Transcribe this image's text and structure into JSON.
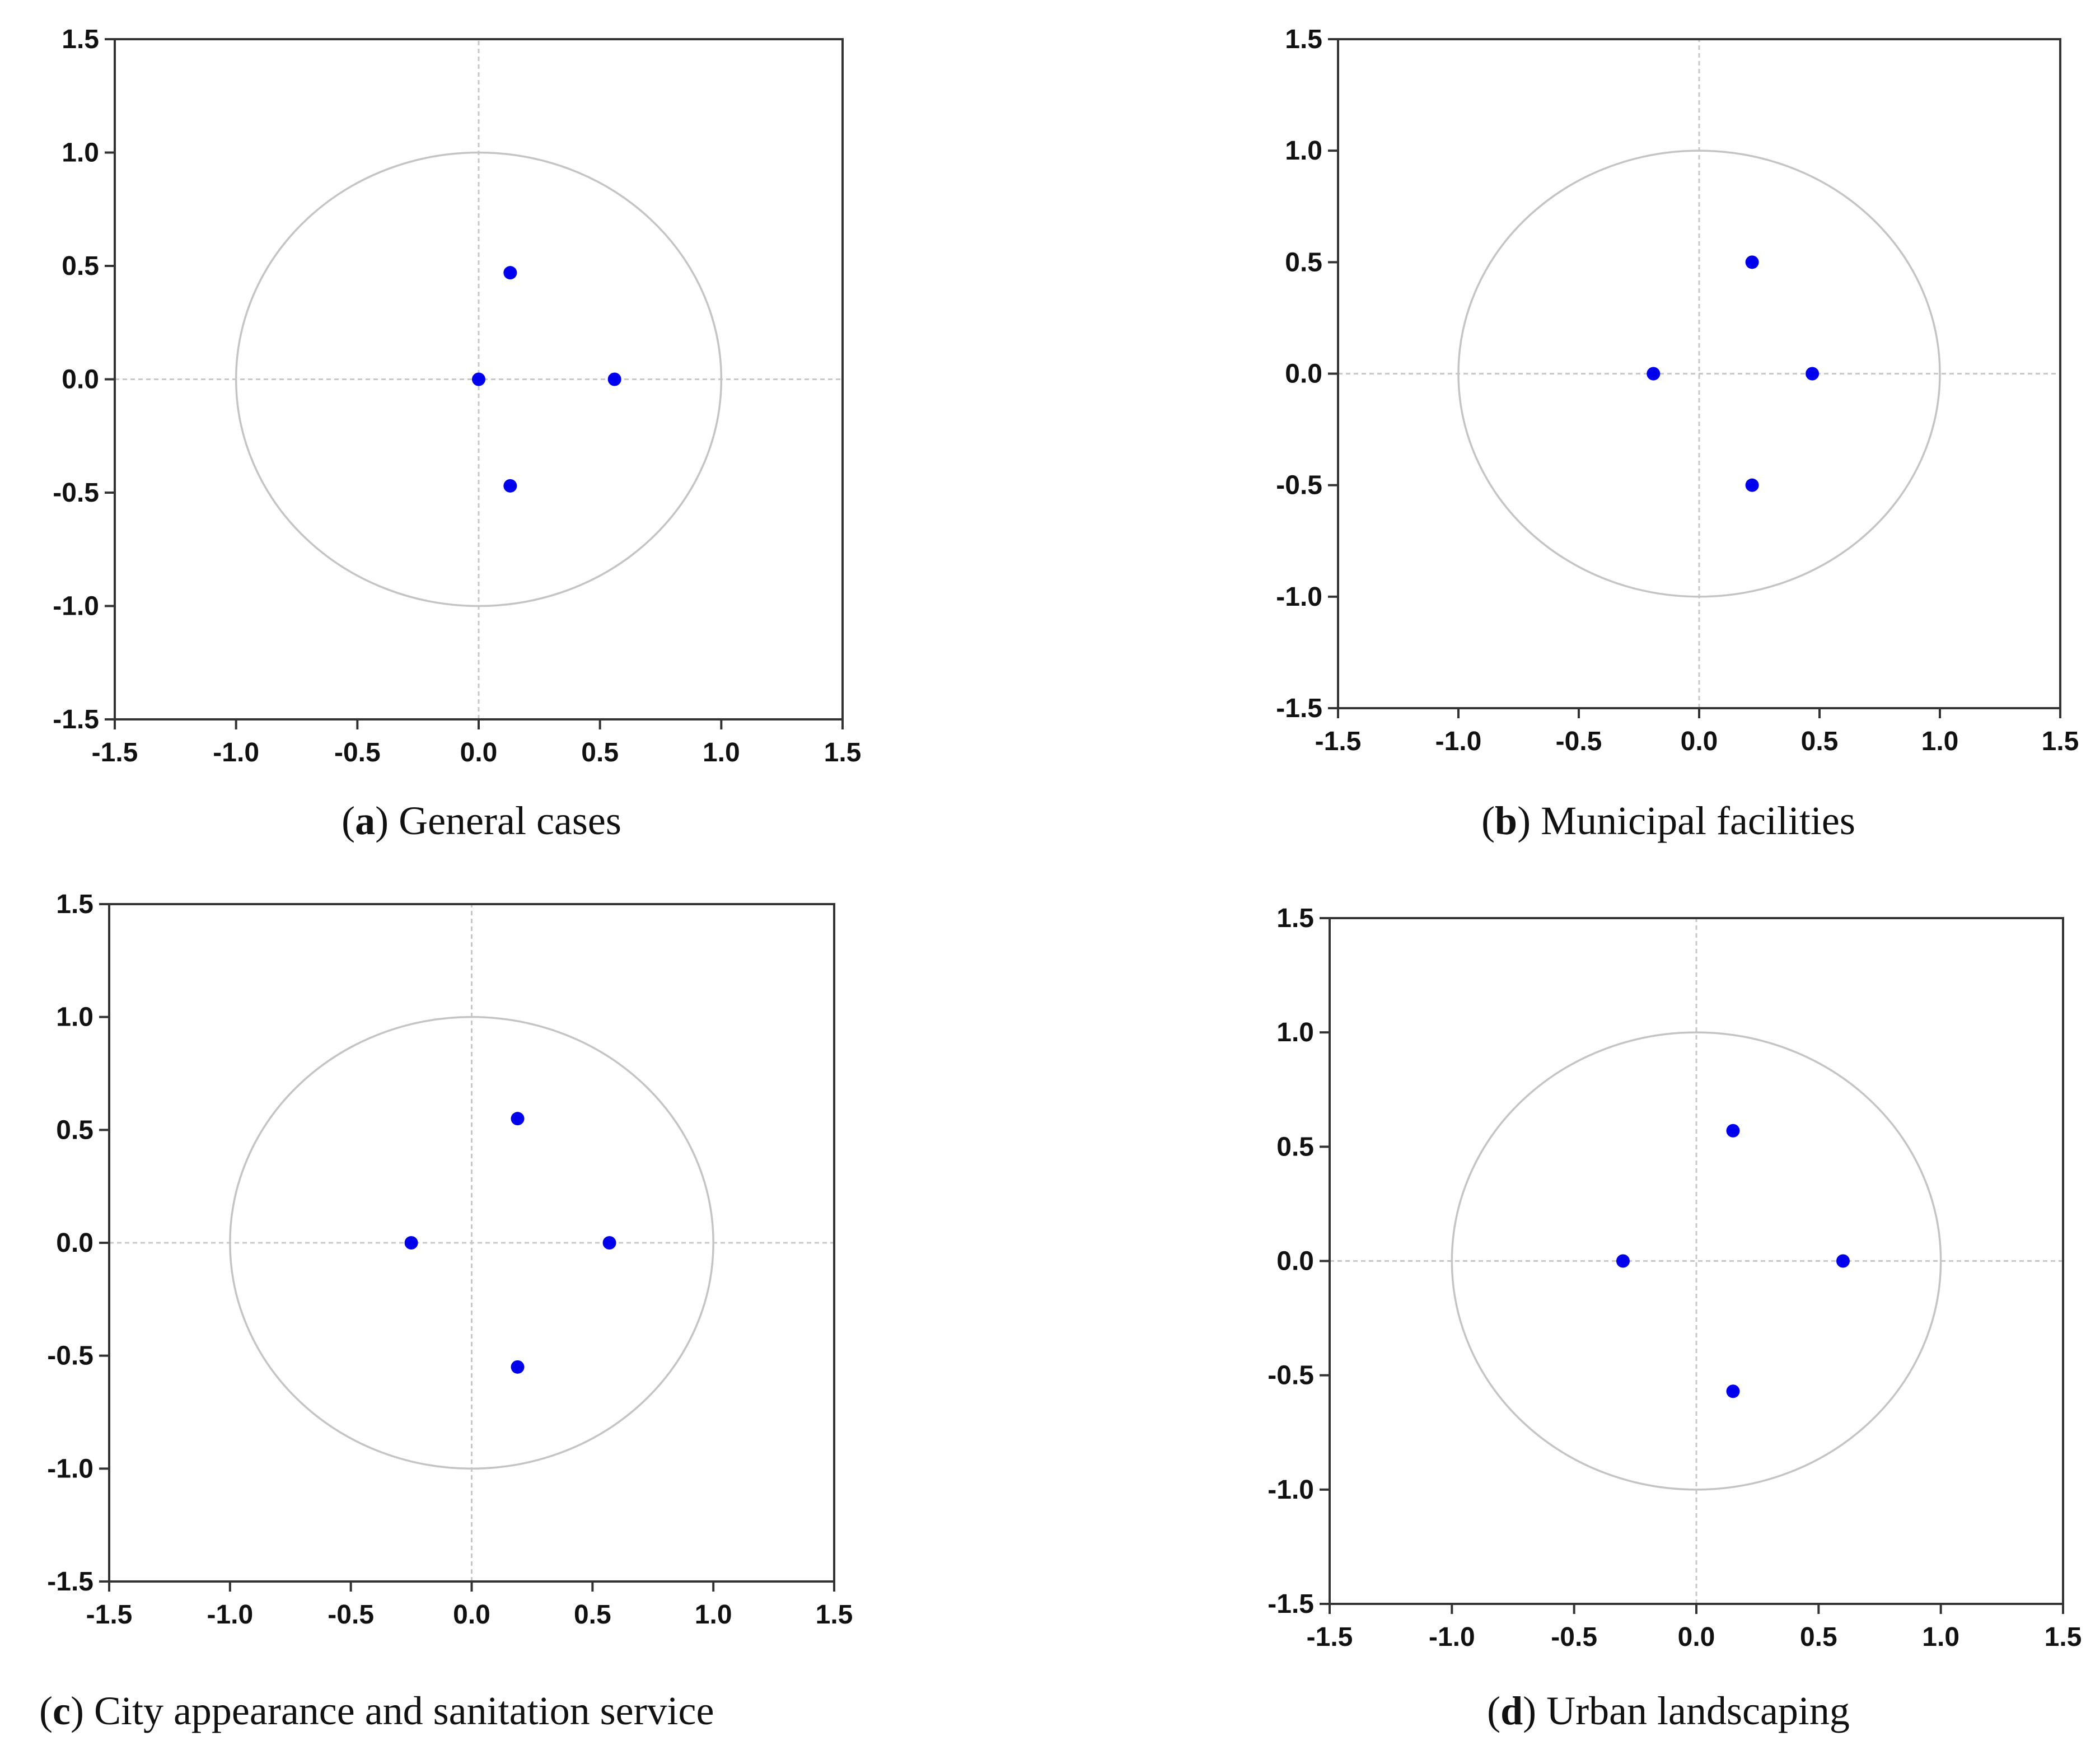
{
  "chart_data": [
    {
      "type": "scatter",
      "panel_letter": "a",
      "caption": "General cases",
      "points": [
        {
          "x": 0.0,
          "y": 0.0
        },
        {
          "x": 0.13,
          "y": 0.47
        },
        {
          "x": 0.13,
          "y": -0.47
        },
        {
          "x": 0.56,
          "y": 0.0
        }
      ],
      "xlim": [
        -1.5,
        1.5
      ],
      "ylim": [
        -1.5,
        1.5
      ],
      "x_ticks": [
        "-1.5",
        "-1.0",
        "-0.5",
        "0.0",
        "0.5",
        "1.0",
        "1.5"
      ],
      "y_ticks": [
        "1.5",
        "1.0",
        "0.5",
        "0.0",
        "-0.5",
        "-1.0",
        "-1.5"
      ],
      "unit_circle": true,
      "grid": false
    },
    {
      "type": "scatter",
      "panel_letter": "b",
      "caption": "Municipal facilities",
      "points": [
        {
          "x": -0.19,
          "y": 0.0
        },
        {
          "x": 0.22,
          "y": 0.5
        },
        {
          "x": 0.22,
          "y": -0.5
        },
        {
          "x": 0.47,
          "y": 0.0
        }
      ],
      "xlim": [
        -1.5,
        1.5
      ],
      "ylim": [
        -1.5,
        1.5
      ],
      "x_ticks": [
        "-1.5",
        "-1.0",
        "-0.5",
        "0.0",
        "0.5",
        "1.0",
        "1.5"
      ],
      "y_ticks": [
        "1.5",
        "1.0",
        "0.5",
        "0.0",
        "-0.5",
        "-1.0",
        "-1.5"
      ],
      "unit_circle": true,
      "grid": false
    },
    {
      "type": "scatter",
      "panel_letter": "c",
      "caption": "City appearance and sanitation service",
      "points": [
        {
          "x": -0.25,
          "y": 0.0
        },
        {
          "x": 0.19,
          "y": 0.55
        },
        {
          "x": 0.19,
          "y": -0.55
        },
        {
          "x": 0.57,
          "y": 0.0
        }
      ],
      "xlim": [
        -1.5,
        1.5
      ],
      "ylim": [
        -1.5,
        1.5
      ],
      "x_ticks": [
        "-1.5",
        "-1.0",
        "-0.5",
        "0.0",
        "0.5",
        "1.0",
        "1.5"
      ],
      "y_ticks": [
        "1.5",
        "1.0",
        "0.5",
        "0.0",
        "-0.5",
        "-1.0",
        "-1.5"
      ],
      "unit_circle": true,
      "grid": false
    },
    {
      "type": "scatter",
      "panel_letter": "d",
      "caption": "Urban landscaping",
      "points": [
        {
          "x": -0.3,
          "y": 0.0
        },
        {
          "x": 0.15,
          "y": 0.57
        },
        {
          "x": 0.15,
          "y": -0.57
        },
        {
          "x": 0.6,
          "y": 0.0
        }
      ],
      "xlim": [
        -1.5,
        1.5
      ],
      "ylim": [
        -1.5,
        1.5
      ],
      "x_ticks": [
        "-1.5",
        "-1.0",
        "-0.5",
        "0.0",
        "0.5",
        "1.0",
        "1.5"
      ],
      "y_ticks": [
        "1.5",
        "1.0",
        "0.5",
        "0.0",
        "-0.5",
        "-1.0",
        "-1.5"
      ],
      "unit_circle": true,
      "grid": false
    }
  ],
  "colors": {
    "point": "#0000ee",
    "circle": "#c4c4c4",
    "zero_lines": "#c8c8c8",
    "frame": "#333333"
  }
}
